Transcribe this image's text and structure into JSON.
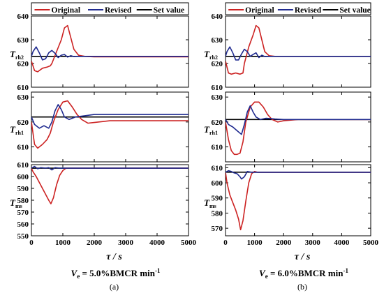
{
  "legend": [
    {
      "label": "Original",
      "color": "#cc2222"
    },
    {
      "label": "Revised",
      "color": "#1f2a8f"
    },
    {
      "label": "Set value",
      "color": "#000000"
    }
  ],
  "x_axis": {
    "label": "τ / s",
    "ticks": [
      0,
      1000,
      2000,
      3000,
      4000,
      5000
    ],
    "range": [
      0,
      5000
    ]
  },
  "chart_data": [
    {
      "type": "line",
      "panel_label": "(a)",
      "caption_ve": "V",
      "caption_ve_sub": "e",
      "caption_value": " = 5.0%BMCR min",
      "caption_exp": "-1",
      "subplots": [
        {
          "ylabel_main": "T",
          "ylabel_sub": "rh2",
          "ylim": [
            610,
            640
          ],
          "yticks": [
            610,
            620,
            630,
            640
          ],
          "set_value": 623,
          "series": [
            {
              "name": "Original",
              "x": [
                0,
                100,
                200,
                350,
                500,
                600,
                650,
                800,
                950,
                1050,
                1150,
                1250,
                1350,
                1500,
                1700,
                2000,
                3000,
                5000
              ],
              "y": [
                621,
                617,
                616.5,
                618,
                618.5,
                619,
                620,
                625,
                630,
                635,
                636,
                631,
                626,
                623.5,
                623,
                622.8,
                622.8,
                622.8
              ]
            },
            {
              "name": "Revised",
              "x": [
                0,
                50,
                150,
                250,
                350,
                450,
                550,
                650,
                750,
                850,
                950,
                1050,
                1150,
                1250,
                1350,
                1500,
                2000,
                5000
              ],
              "y": [
                623,
                625,
                627,
                624.5,
                621.5,
                622,
                624.5,
                625.5,
                624.3,
                622.5,
                623.5,
                623.8,
                622.7,
                623.3,
                622.9,
                623,
                623,
                623
              ]
            }
          ]
        },
        {
          "ylabel_main": "T",
          "ylabel_sub": "rh1",
          "ylim": [
            604,
            632
          ],
          "yticks": [
            610,
            620,
            630
          ],
          "set_value": 622,
          "series": [
            {
              "name": "Original",
              "x": [
                0,
                100,
                200,
                350,
                500,
                600,
                700,
                850,
                1000,
                1150,
                1300,
                1450,
                1600,
                1800,
                2000,
                2500,
                3000,
                5000
              ],
              "y": [
                620,
                611,
                609.5,
                611,
                613,
                615.5,
                620,
                625,
                628,
                628.5,
                626,
                623,
                621,
                619.5,
                619.8,
                620.5,
                620.5,
                620.5
              ]
            },
            {
              "name": "Revised",
              "x": [
                0,
                100,
                250,
                400,
                550,
                650,
                750,
                850,
                950,
                1050,
                1200,
                1400,
                1700,
                2000,
                3000,
                5000
              ],
              "y": [
                622,
                619,
                617.5,
                618.5,
                617.5,
                620,
                624.5,
                627,
                625,
                622,
                621,
                622,
                622.5,
                623,
                623,
                623
              ]
            }
          ]
        },
        {
          "ylabel_main": "T",
          "ylabel_sub": "ms",
          "ylim": [
            550,
            610
          ],
          "yticks": [
            550,
            560,
            570,
            580,
            590,
            600,
            610
          ],
          "set_value": 607,
          "series": [
            {
              "name": "Original",
              "x": [
                0,
                50,
                150,
                250,
                350,
                450,
                550,
                620,
                700,
                800,
                900,
                1000,
                1100,
                1300,
                1600,
                2000,
                5000
              ],
              "y": [
                607,
                604,
                600,
                595,
                590,
                585,
                580,
                577,
                582,
                593,
                601,
                605,
                607,
                607,
                607,
                607,
                607
              ]
            },
            {
              "name": "Revised",
              "x": [
                0,
                100,
                200,
                300,
                450,
                550,
                650,
                750,
                900,
                1100,
                1500,
                2000,
                5000
              ],
              "y": [
                607,
                608.5,
                606.5,
                607.5,
                607,
                607.5,
                605.5,
                607.5,
                607,
                607,
                607,
                607,
                607
              ]
            }
          ]
        }
      ]
    },
    {
      "type": "line",
      "panel_label": "(b)",
      "caption_ve": "V",
      "caption_ve_sub": "e",
      "caption_value": " = 6.0%BMCR min",
      "caption_exp": "-1",
      "subplots": [
        {
          "ylabel_main": "T",
          "ylabel_sub": "rh2",
          "ylim": [
            610,
            640
          ],
          "yticks": [
            610,
            620,
            630,
            640
          ],
          "set_value": 623,
          "series": [
            {
              "name": "Original",
              "x": [
                0,
                100,
                200,
                350,
                500,
                600,
                650,
                800,
                950,
                1050,
                1150,
                1250,
                1350,
                1500,
                1700,
                2000,
                3000,
                5000
              ],
              "y": [
                621,
                616,
                615.5,
                616,
                615.5,
                616,
                620,
                627,
                632,
                636,
                635,
                630,
                625,
                623.3,
                623,
                623,
                623,
                623
              ]
            },
            {
              "name": "Revised",
              "x": [
                0,
                50,
                150,
                250,
                350,
                450,
                550,
                650,
                750,
                850,
                950,
                1050,
                1150,
                1250,
                1350,
                1500,
                2000,
                5000
              ],
              "y": [
                623,
                625,
                627,
                624.5,
                621.5,
                621.5,
                624,
                626,
                625,
                623,
                623.8,
                624.5,
                622.5,
                623.5,
                622.9,
                623,
                623,
                623
              ]
            }
          ]
        },
        {
          "ylabel_main": "T",
          "ylabel_sub": "rh1",
          "ylim": [
            604,
            632
          ],
          "yticks": [
            610,
            620,
            630
          ],
          "set_value": 621,
          "series": [
            {
              "name": "Original",
              "x": [
                0,
                100,
                200,
                300,
                400,
                500,
                600,
                700,
                850,
                1000,
                1150,
                1300,
                1450,
                1600,
                1800,
                2000,
                2500,
                5000
              ],
              "y": [
                620,
                613,
                608.5,
                607,
                607,
                607.5,
                612,
                620,
                626,
                628,
                628,
                626,
                623,
                621,
                620,
                620.5,
                621,
                621
              ]
            },
            {
              "name": "Revised",
              "x": [
                0,
                100,
                250,
                400,
                550,
                650,
                750,
                850,
                950,
                1050,
                1200,
                1400,
                1700,
                2000,
                3000,
                5000
              ],
              "y": [
                621,
                619,
                618,
                616.5,
                615,
                619,
                624,
                626.5,
                624,
                622,
                621,
                621.5,
                621.2,
                621,
                621,
                621
              ]
            }
          ]
        },
        {
          "ylabel_main": "T",
          "ylabel_sub": "ms",
          "ylim": [
            565,
            612
          ],
          "yticks": [
            570,
            580,
            590,
            600,
            610
          ],
          "set_value": 607,
          "series": [
            {
              "name": "Original",
              "x": [
                0,
                50,
                150,
                250,
                350,
                450,
                520,
                600,
                700,
                800,
                900,
                1000,
                1100,
                1300,
                1600,
                2000,
                5000
              ],
              "y": [
                607,
                600,
                592,
                587,
                582,
                576,
                569,
                575,
                588,
                600,
                606,
                607.5,
                607,
                607,
                607,
                607,
                607
              ]
            },
            {
              "name": "Revised",
              "x": [
                0,
                100,
                200,
                300,
                400,
                500,
                550,
                650,
                750,
                900,
                1100,
                1500,
                2000,
                5000
              ],
              "y": [
                607,
                608,
                607.5,
                606.5,
                606,
                604,
                602.5,
                604,
                607.5,
                607,
                607,
                607,
                607,
                607
              ]
            }
          ]
        }
      ]
    }
  ]
}
